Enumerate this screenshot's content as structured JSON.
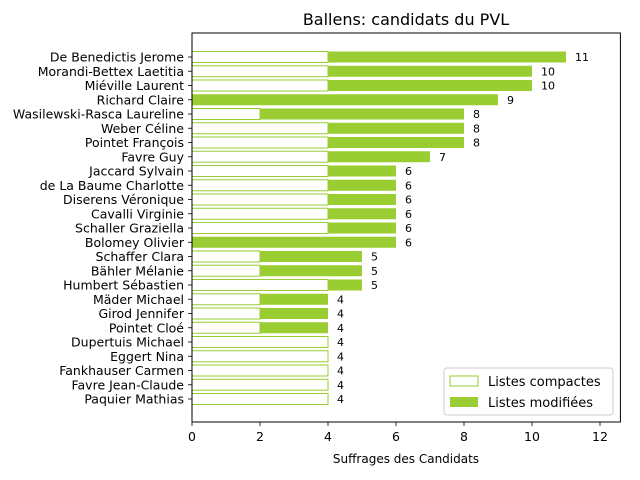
{
  "chart_data": {
    "type": "bar",
    "orientation": "horizontal",
    "stacked": true,
    "title": "Ballens: candidats du PVL",
    "xlabel": "Suffrages des Candidats",
    "ylabel": "",
    "xlim": [
      0,
      12.6
    ],
    "xticks": [
      "0",
      "2",
      "4",
      "6",
      "8",
      "10",
      "12"
    ],
    "grid": false,
    "legend_position": "lower-right",
    "categories": [
      "De Benedictis Jerome",
      "Morandi-Bettex Laetitia",
      "Miéville Laurent",
      "Richard Claire",
      "Wasilewski-Rasca Laureline",
      "Weber Céline",
      "Pointet François",
      "Favre Guy",
      "Jaccard Sylvain",
      "de La Baume Charlotte",
      "Diserens Véronique",
      "Cavalli Virginie",
      "Schaller Graziella",
      "Bolomey Olivier",
      "Schaffer Clara",
      "Bähler Mélanie",
      "Humbert Sébastien",
      "Mäder Michael",
      "Girod Jennifer",
      "Pointet Cloé",
      "Dupertuis Michael",
      "Eggert Nina",
      "Fankhauser Carmen",
      "Favre Jean-Claude",
      "Paquier Mathias"
    ],
    "series": [
      {
        "name": "Listes compactes",
        "style": "outline",
        "color": "#9acd32",
        "values": [
          4,
          4,
          4,
          0,
          2,
          4,
          4,
          4,
          4,
          4,
          4,
          4,
          4,
          0,
          2,
          2,
          4,
          2,
          2,
          2,
          4,
          4,
          4,
          4,
          4
        ]
      },
      {
        "name": "Listes modifiées",
        "style": "filled",
        "color": "#9acd32",
        "values": [
          7,
          6,
          6,
          9,
          6,
          4,
          4,
          3,
          2,
          2,
          2,
          2,
          2,
          6,
          3,
          3,
          1,
          2,
          2,
          2,
          0,
          0,
          0,
          0,
          0
        ]
      }
    ],
    "totals": [
      "11",
      "10",
      "10",
      "9",
      "8",
      "8",
      "8",
      "7",
      "6",
      "6",
      "6",
      "6",
      "6",
      "6",
      "5",
      "5",
      "5",
      "4",
      "4",
      "4",
      "4",
      "4",
      "4",
      "4",
      "4"
    ]
  }
}
